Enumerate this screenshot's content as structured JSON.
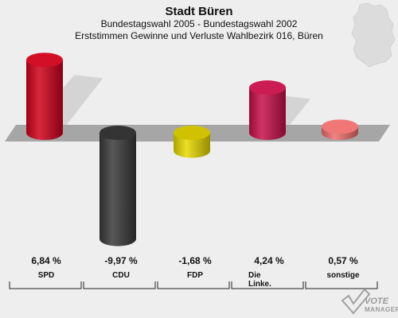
{
  "header": {
    "title": "Stadt Büren",
    "subtitle": "Bundestagswahl 2005 - Bundestagswahl 2002",
    "description": "Erststimmen Gewinne und Verluste Wahlbezirk 016, Büren"
  },
  "logo": {
    "line1": "VOTE",
    "line2": "MANAGER"
  },
  "chart_data": {
    "type": "bar",
    "title": "Stadt Büren",
    "subtitle": "Bundestagswahl 2005 - Bundestagswahl 2002 / Erststimmen Gewinne und Verluste Wahlbezirk 016, Büren",
    "categories": [
      "SPD",
      "CDU",
      "FDP",
      "Die Linke.",
      "sonstige"
    ],
    "values": [
      6.84,
      -9.97,
      -1.68,
      4.24,
      0.57
    ],
    "value_labels": [
      "6,84 %",
      "-9,97 %",
      "-1,68 %",
      "4,24 %",
      "0,57 %"
    ],
    "colors": [
      "#d0021b",
      "#3a3a3a",
      "#e8d800",
      "#c8104a",
      "#f07070"
    ],
    "unit": "%",
    "grid": false,
    "legend": "none"
  },
  "labels": [
    {
      "value": "6,84 %",
      "category": [
        "SPD"
      ]
    },
    {
      "value": "-9,97 %",
      "category": [
        "CDU"
      ]
    },
    {
      "value": "-1,68 %",
      "category": [
        "FDP"
      ]
    },
    {
      "value": "4,24 %",
      "category": [
        "Die",
        "Linke."
      ]
    },
    {
      "value": "0,57 %",
      "category": [
        "sonstige"
      ]
    }
  ]
}
